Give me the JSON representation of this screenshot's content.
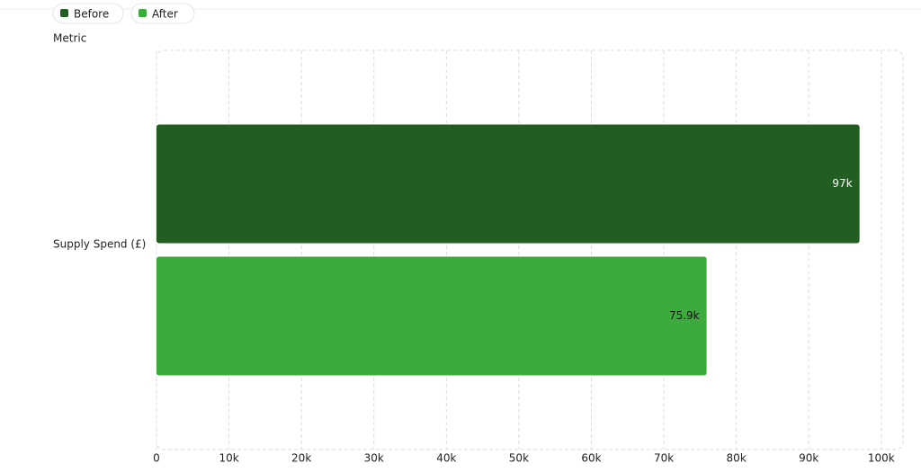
{
  "chart_data": {
    "type": "bar",
    "orientation": "horizontal",
    "y_label": "Metric",
    "categories": [
      "Supply Spend (£)"
    ],
    "series": [
      {
        "name": "Before",
        "color": "#225e22",
        "values": [
          97000
        ],
        "value_labels": [
          "97k"
        ]
      },
      {
        "name": "After",
        "color": "#3daa3e",
        "values": [
          75900
        ],
        "value_labels": [
          "75.9k"
        ]
      }
    ],
    "xlim": [
      0,
      103000
    ],
    "xticks": [
      0,
      {
        "value": 10000,
        "label": "10k"
      },
      {
        "value": 20000,
        "label": "20k"
      },
      {
        "value": 30000,
        "label": "30k"
      },
      {
        "value": 40000,
        "label": "40k"
      },
      {
        "value": 50000,
        "label": "50k"
      },
      {
        "value": 60000,
        "label": "60k"
      },
      {
        "value": 70000,
        "label": "70k"
      },
      {
        "value": 80000,
        "label": "80k"
      },
      {
        "value": 90000,
        "label": "90k"
      },
      {
        "value": 100000,
        "label": "100k"
      }
    ],
    "grid": true,
    "legend": "top-left"
  }
}
